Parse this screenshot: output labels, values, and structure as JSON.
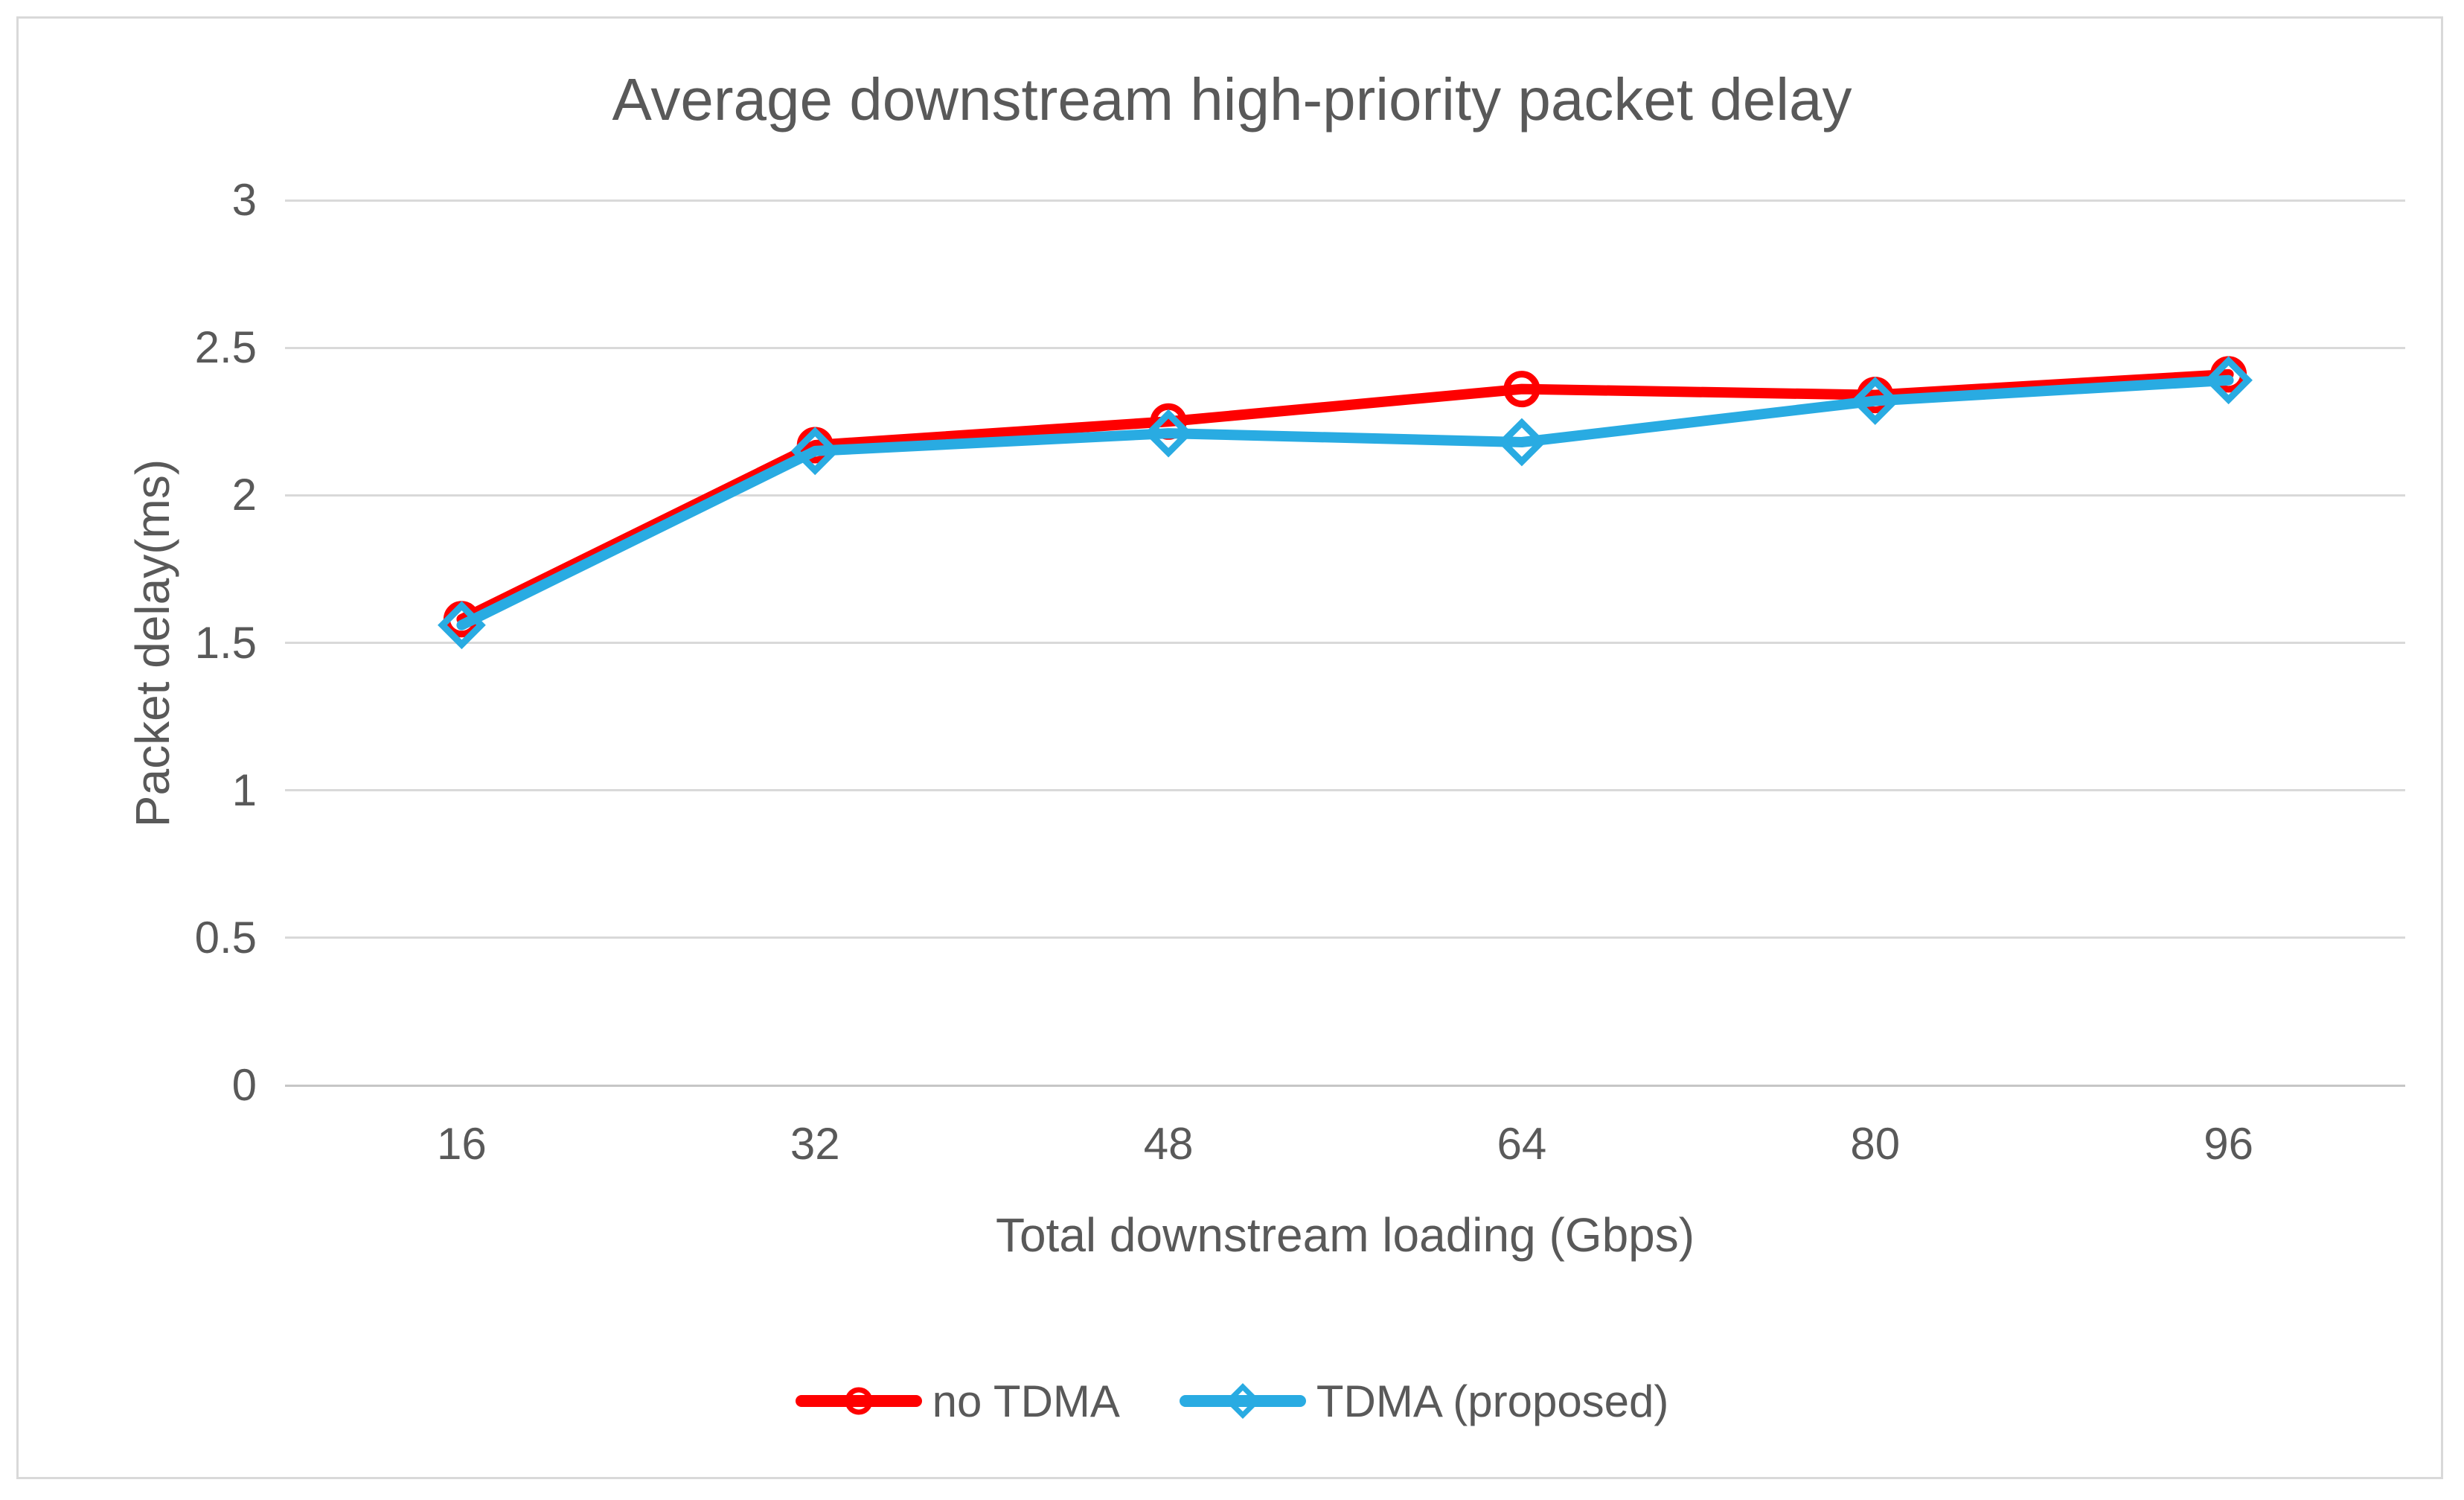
{
  "chart_data": {
    "type": "line",
    "title": "Average downstream high-priority packet delay",
    "xlabel": "Total downstream loading (Gbps)",
    "ylabel": "Packet delay(ms)",
    "categories": [
      16,
      32,
      48,
      64,
      80,
      96
    ],
    "series": [
      {
        "name": "no TDMA",
        "color": "#fe0000",
        "marker": "circle",
        "values": [
          1.58,
          2.17,
          2.25,
          2.36,
          2.34,
          2.41
        ]
      },
      {
        "name": "TDMA (proposed)",
        "color": "#29abe2",
        "marker": "diamond",
        "values": [
          1.56,
          2.15,
          2.21,
          2.18,
          2.32,
          2.39
        ]
      }
    ],
    "ylim": [
      0,
      3
    ],
    "y_ticks": [
      "3",
      "2.5",
      "2",
      "1.5",
      "1",
      "0.5",
      "0"
    ],
    "grid": "horizontal",
    "legend_position": "bottom"
  },
  "colors": {
    "text": "#595959",
    "gridline": "#d9d9d9",
    "axis_line": "#c6c6c6",
    "border": "#d9d9d9",
    "background": "#ffffff"
  }
}
